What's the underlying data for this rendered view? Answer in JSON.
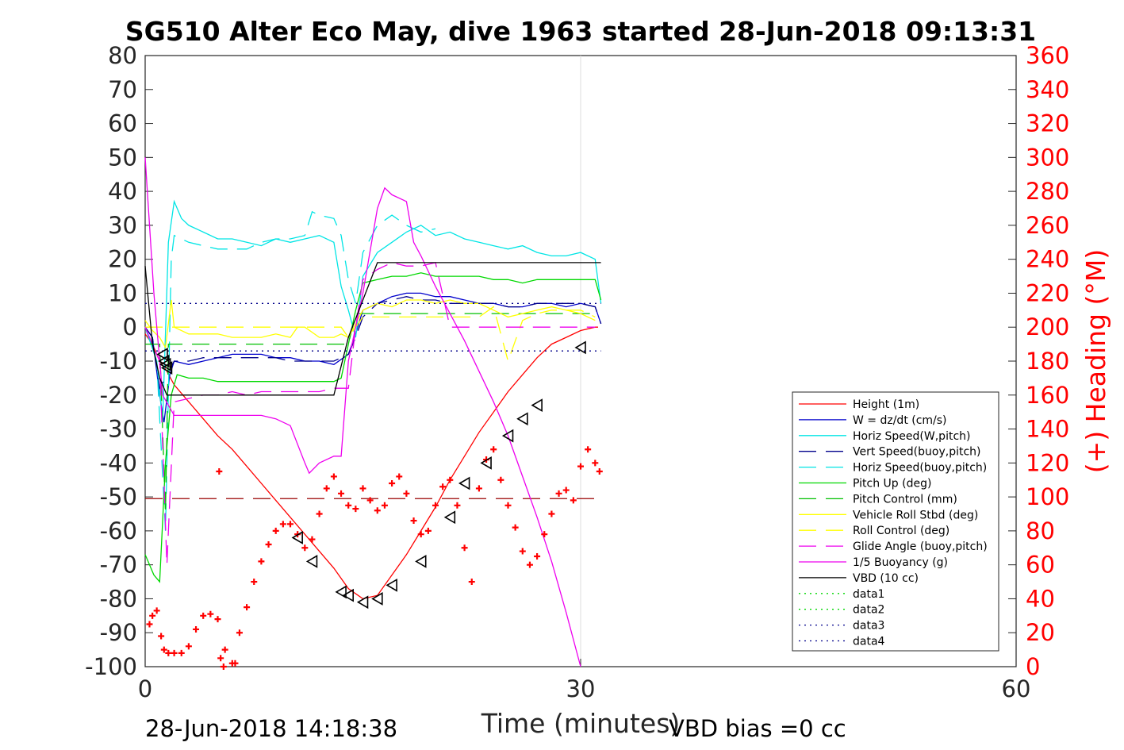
{
  "chart_data": {
    "type": "line",
    "title": "SG510 Alter Eco May, dive 1963 started 28-Jun-2018 09:13:31",
    "xlabel": "Time (minutes)",
    "ylabel_right": "(+) Heading (°M)",
    "footer_left": "28-Jun-2018 14:18:38",
    "footer_right": "VBD bias =0 cc",
    "xlim": [
      0,
      60
    ],
    "ylim": [
      -100,
      80
    ],
    "ylim_right": [
      0,
      360
    ],
    "x_ticks": [
      "0",
      "30",
      "60"
    ],
    "y_ticks": [
      "80",
      "70",
      "60",
      "50",
      "40",
      "30",
      "20",
      "10",
      "0",
      "-10",
      "-20",
      "-30",
      "-40",
      "-50",
      "-60",
      "-70",
      "-80",
      "-90",
      "-100"
    ],
    "y_ticks_right": [
      "360",
      "340",
      "320",
      "300",
      "280",
      "260",
      "240",
      "220",
      "200",
      "180",
      "160",
      "140",
      "120",
      "100",
      "80",
      "60",
      "40",
      "20",
      "0"
    ],
    "grid": "x-only",
    "legend_position": "bottom-right",
    "series": [
      {
        "name": "Height (1m)",
        "color": "#ff0000",
        "style": "solid",
        "x": [
          0,
          0.5,
          1,
          1.5,
          2,
          3,
          4,
          5,
          6,
          7,
          8,
          9,
          10,
          11,
          12,
          13,
          14,
          15,
          16,
          17,
          18,
          19,
          20,
          21,
          22,
          23,
          24,
          25,
          26,
          27,
          28,
          29,
          30,
          31,
          31.2
        ],
        "y": [
          -2,
          -5,
          -10,
          -13,
          -17,
          -22,
          -27,
          -32,
          -36,
          -41,
          -46,
          -51,
          -56,
          -61,
          -66,
          -71,
          -77,
          -80,
          -79,
          -73,
          -67,
          -60,
          -53,
          -45,
          -38,
          -31,
          -25,
          -19,
          -14,
          -9,
          -5,
          -3,
          -1,
          0,
          0
        ]
      },
      {
        "name": "W = dz/dt (cm/s)",
        "color": "#0000cc",
        "style": "solid",
        "x": [
          0,
          0.5,
          1,
          1.3,
          1.7,
          2,
          3,
          4,
          5,
          6,
          7,
          8,
          9,
          10,
          11,
          12,
          13,
          14,
          14.5,
          15,
          16,
          17,
          18,
          19,
          20,
          21,
          22,
          23,
          24,
          25,
          26,
          27,
          28,
          29,
          30,
          31,
          31.4
        ],
        "y": [
          0,
          -3,
          -20,
          -28,
          -14,
          -10,
          -11,
          -10,
          -9,
          -8,
          -8,
          -8,
          -9,
          -9,
          -10,
          -10,
          -11,
          -8,
          -2,
          5,
          7,
          9,
          10,
          10,
          9,
          9,
          8,
          7,
          7,
          6,
          6,
          7,
          7,
          6,
          7,
          6,
          1
        ]
      },
      {
        "name": "Horiz Speed(W,pitch)",
        "color": "#00e5e5",
        "style": "solid",
        "x": [
          0,
          0.8,
          1.2,
          1.6,
          2,
          2.5,
          3,
          4,
          5,
          6,
          7,
          8,
          9,
          10,
          11,
          12,
          13,
          13.5,
          14,
          14.5,
          15,
          16,
          17,
          18,
          19,
          20,
          21,
          22,
          23,
          24,
          25,
          26,
          27,
          28,
          29,
          30,
          31,
          31.4
        ],
        "y": [
          0,
          -10,
          -28,
          25,
          37,
          32,
          30,
          28,
          26,
          26,
          25,
          24,
          26,
          25,
          26,
          27,
          25,
          12,
          5,
          -3,
          15,
          22,
          25,
          28,
          30,
          27,
          28,
          26,
          25,
          24,
          23,
          24,
          22,
          21,
          21,
          22,
          20,
          7
        ]
      },
      {
        "name": "Vert Speed(buoy,pitch)",
        "color": "#00008b",
        "style": "dash",
        "x": [
          0,
          0.5,
          1,
          1.5,
          2,
          3,
          4,
          5,
          6,
          7,
          8,
          9,
          10,
          11,
          12,
          13,
          14,
          14.5,
          15,
          16,
          17,
          18,
          19,
          20,
          21,
          22,
          23,
          24,
          25,
          26,
          27,
          28,
          29,
          30,
          31,
          31.4
        ],
        "y": [
          0,
          -3,
          -18,
          -14,
          -10,
          -10,
          -9,
          -9,
          -9,
          -9,
          -9,
          -9,
          -10,
          -10,
          -10,
          -10,
          -8,
          -3,
          3,
          7,
          8,
          9,
          8,
          8,
          7,
          7,
          7,
          7,
          6,
          6,
          7,
          7,
          7,
          7,
          6,
          1
        ]
      },
      {
        "name": "Horiz Speed(buoy,pitch)",
        "color": "#00e5e5",
        "style": "dash",
        "x": [
          0,
          0.8,
          1.4,
          1.8,
          2,
          3,
          4,
          5,
          6,
          7,
          8,
          9,
          10,
          11,
          11.5,
          12,
          13,
          13.5,
          14,
          14.5,
          15,
          16,
          17,
          18,
          19,
          20
        ],
        "y": [
          0,
          -10,
          -60,
          20,
          27,
          25,
          24,
          23,
          23,
          23,
          25,
          26,
          26,
          27,
          34,
          33,
          32,
          27,
          14,
          7,
          22,
          30,
          33,
          30,
          28,
          29
        ]
      },
      {
        "name": "Pitch Up (deg)",
        "color": "#00d800",
        "style": "solid",
        "x": [
          0,
          0.6,
          1,
          1.4,
          1.8,
          2.2,
          3,
          4,
          5,
          6,
          7,
          8,
          9,
          10,
          11,
          12,
          13,
          13.5,
          14,
          14.5,
          15,
          16,
          17,
          18,
          19,
          20,
          21,
          22,
          23,
          24,
          25,
          26,
          27,
          28,
          29,
          30,
          31,
          31.4
        ],
        "y": [
          -67,
          -73,
          -75,
          -40,
          -20,
          -14,
          -15,
          -15,
          -16,
          -16,
          -16,
          -16,
          -16,
          -16,
          -16,
          -16,
          -16,
          -15,
          -5,
          5,
          13,
          14,
          15,
          15,
          16,
          15,
          15,
          15,
          15,
          14,
          14,
          13,
          14,
          14,
          14,
          14,
          14,
          8
        ]
      },
      {
        "name": "Pitch Control (mm)",
        "color": "#00c000",
        "style": "dash",
        "x": [
          0,
          1,
          1.4,
          1.6,
          2,
          3,
          5,
          10,
          13,
          14,
          14.5,
          15,
          20,
          25,
          31
        ],
        "y": [
          -5,
          -5,
          -55,
          -5,
          -5,
          -5,
          -5,
          -5,
          -5,
          -5,
          4,
          4,
          4,
          4,
          4
        ]
      },
      {
        "name": "Vehicle Roll Stbd (deg)",
        "color": "#ffff00",
        "style": "solid",
        "x": [
          0,
          0.5,
          1,
          1.4,
          1.8,
          2,
          3,
          4,
          5,
          6,
          7,
          8,
          9,
          10,
          10.5,
          11,
          12,
          13,
          13.5,
          14,
          15,
          16,
          17,
          18,
          19,
          20,
          21,
          22,
          23,
          24,
          25,
          26,
          27,
          28,
          29,
          30,
          31
        ],
        "y": [
          2,
          -1,
          -3,
          -6,
          8,
          0,
          -2,
          -2,
          -2,
          -3,
          -3,
          -3,
          -2,
          -3,
          0,
          0,
          -3,
          -3,
          -2,
          -3,
          5,
          7,
          6,
          8,
          8,
          7,
          8,
          7,
          7,
          5,
          3,
          4,
          5,
          6,
          5,
          4,
          2
        ]
      },
      {
        "name": "Roll Control (deg)",
        "color": "#ffff00",
        "style": "dash",
        "x": [
          0,
          2,
          5,
          10,
          13,
          13.5,
          14,
          15,
          20,
          23,
          24,
          25,
          26,
          27,
          28,
          29,
          30,
          31
        ],
        "y": [
          0,
          0,
          0,
          0,
          0,
          0,
          -3,
          3,
          3,
          3,
          6,
          -10,
          2,
          4,
          5,
          5,
          5,
          3
        ]
      },
      {
        "name": "Glide Angle (buoy,pitch)",
        "color": "#ee00ee",
        "style": "dash",
        "x": [
          0,
          1,
          1.5,
          2,
          3,
          4,
          5,
          6,
          7,
          8,
          9,
          10,
          11,
          12,
          13,
          14,
          14.5,
          15,
          16,
          17,
          18,
          19,
          20,
          21,
          22,
          23,
          24,
          25,
          26,
          27,
          28,
          29,
          30,
          31
        ],
        "y": [
          0,
          -10,
          -70,
          -22,
          -21,
          -20,
          -20,
          -19,
          -20,
          -19,
          -19,
          -19,
          -19,
          -19,
          -18,
          -18,
          0,
          14,
          17,
          19,
          18,
          18,
          19,
          0,
          0,
          0,
          0,
          0,
          0,
          0,
          0,
          0,
          0,
          0
        ]
      },
      {
        "name": "1/5 Buoyancy (g)",
        "color": "#ee00ee",
        "style": "solid",
        "x": [
          0,
          0.6,
          1.2,
          2,
          3,
          4,
          5,
          6,
          7,
          8,
          9,
          10,
          11,
          11.3,
          12,
          13,
          13.5,
          14,
          15,
          16,
          16.5,
          17,
          18,
          18.5,
          19,
          20,
          21,
          22,
          23,
          24,
          25,
          26,
          27,
          28,
          29,
          30
        ],
        "y": [
          50,
          10,
          -20,
          -26,
          -26,
          -26,
          -26,
          -26,
          -26,
          -26,
          -27,
          -29,
          -40,
          -43,
          -40,
          -38,
          -38,
          -10,
          10,
          35,
          41,
          39,
          37,
          25,
          21,
          12,
          4,
          -4,
          -13,
          -22,
          -32,
          -44,
          -56,
          -69,
          -84,
          -100
        ]
      },
      {
        "name": "VBD (10 cc)",
        "color": "#000000",
        "style": "solid",
        "x": [
          0,
          0.5,
          1,
          1.5,
          2,
          3,
          5,
          10,
          13,
          14,
          16,
          17,
          20,
          25,
          30,
          31.4
        ],
        "y": [
          18,
          -5,
          -15,
          -20,
          -20,
          -20,
          -20,
          -20,
          -20,
          -3,
          19,
          19,
          19,
          19,
          19,
          19
        ]
      },
      {
        "name": "data1",
        "color": "#00d800",
        "style": "dot",
        "x": [],
        "y": []
      },
      {
        "name": "data2",
        "color": "#00d800",
        "style": "dot",
        "x": [],
        "y": []
      },
      {
        "name": "data3",
        "color": "#00008b",
        "style": "dot",
        "x": [
          0,
          31.4
        ],
        "y": [
          7,
          7
        ]
      },
      {
        "name": "data4",
        "color": "#00008b",
        "style": "dot",
        "x": [
          0,
          31.4
        ],
        "y": [
          -7,
          -7
        ]
      }
    ],
    "ref_line": {
      "color": "#990000",
      "style": "dash",
      "x": [
        0,
        31.4
      ],
      "y": [
        -50.5,
        -50.5
      ]
    },
    "markers_triangles": {
      "color": "#000000",
      "x": [
        1.2,
        1.3,
        1.4,
        1.5,
        10.5,
        11.5,
        13.5,
        14,
        15,
        16,
        17,
        19,
        21,
        22,
        23.5,
        25,
        26,
        27,
        30
      ],
      "y": [
        -8,
        -10,
        -11,
        -12,
        -62,
        -69,
        -78,
        -79,
        -81,
        -80,
        -76,
        -69,
        -56,
        -46,
        -40,
        -32,
        -27,
        -23,
        -6
      ]
    },
    "heading_points": {
      "axis": "right",
      "color": "#ff0000",
      "x": [
        0.3,
        0.5,
        0.8,
        1.1,
        1.3,
        1.6,
        2,
        2.5,
        3,
        3.5,
        4,
        4.5,
        5,
        5.5,
        6,
        6.5,
        7,
        7.5,
        8,
        8.5,
        9,
        9.5,
        10,
        10.5,
        11,
        11.5,
        12,
        12.5,
        13,
        13.5,
        14,
        14.5,
        15,
        15.5,
        16,
        16.5,
        17,
        17.5,
        18,
        18.5,
        19,
        19.5,
        20,
        20.5,
        21,
        21.5,
        22,
        22.5,
        23,
        23.5,
        24,
        24.5,
        25,
        25.5,
        26,
        26.5,
        27,
        27.5,
        28,
        28.5,
        29,
        29.5,
        30,
        30.5,
        31,
        31.3,
        5.1,
        5.2,
        5.4,
        6.2
      ],
      "y": [
        25,
        30,
        33,
        18,
        10,
        8,
        8,
        8,
        12,
        22,
        30,
        31,
        28,
        10,
        2,
        20,
        35,
        50,
        62,
        72,
        80,
        84,
        84,
        78,
        70,
        75,
        90,
        105,
        112,
        102,
        95,
        93,
        105,
        98,
        92,
        95,
        108,
        112,
        102,
        86,
        78,
        80,
        95,
        106,
        110,
        95,
        70,
        50,
        105,
        122,
        128,
        110,
        95,
        82,
        68,
        60,
        65,
        78,
        90,
        102,
        104,
        98,
        118,
        128,
        120,
        115,
        115,
        5,
        0,
        2
      ]
    }
  },
  "legend": [
    "Height (1m)",
    "W = dz/dt (cm/s)",
    "Horiz Speed(W,pitch)",
    "Vert Speed(buoy,pitch)",
    "Horiz Speed(buoy,pitch)",
    "Pitch Up (deg)",
    "Pitch Control (mm)",
    "Vehicle Roll Stbd (deg)",
    "Roll Control (deg)",
    "Glide Angle (buoy,pitch)",
    "1/5 Buoyancy (g)",
    "VBD (10 cc)",
    "data1",
    "data2",
    "data3",
    "data4"
  ]
}
